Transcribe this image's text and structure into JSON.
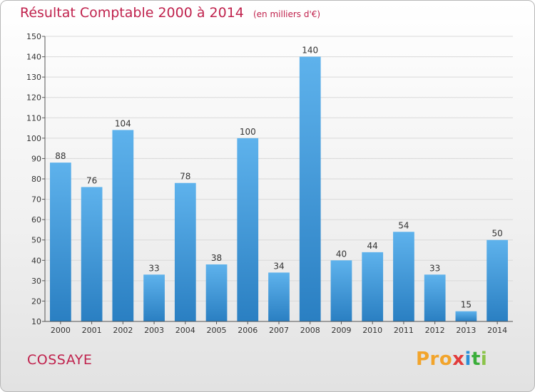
{
  "title": "Résultat Comptable 2000 à 2014",
  "subtitle": "(en milliers d'€)",
  "town": "COSSAYE",
  "logo": {
    "text": "Proxiti",
    "p1": "Pro",
    "p2": "x",
    "p3": "i",
    "p4": "t",
    "p5": "i"
  },
  "colors": {
    "bar": "#3a94d6",
    "title": "#c0224d",
    "axis": "#333333"
  },
  "chart_data": {
    "type": "bar",
    "categories": [
      "2000",
      "2001",
      "2002",
      "2003",
      "2004",
      "2005",
      "2006",
      "2007",
      "2008",
      "2009",
      "2010",
      "2011",
      "2012",
      "2013",
      "2014"
    ],
    "values": [
      88,
      76,
      104,
      33,
      78,
      38,
      100,
      34,
      140,
      40,
      44,
      54,
      33,
      15,
      50
    ],
    "ylim": [
      10,
      150
    ],
    "yticks": [
      10,
      20,
      30,
      40,
      50,
      60,
      70,
      80,
      90,
      100,
      110,
      120,
      130,
      140,
      150
    ],
    "grid": true,
    "title": "Résultat Comptable 2000 à 2014",
    "xlabel": "",
    "ylabel": ""
  }
}
